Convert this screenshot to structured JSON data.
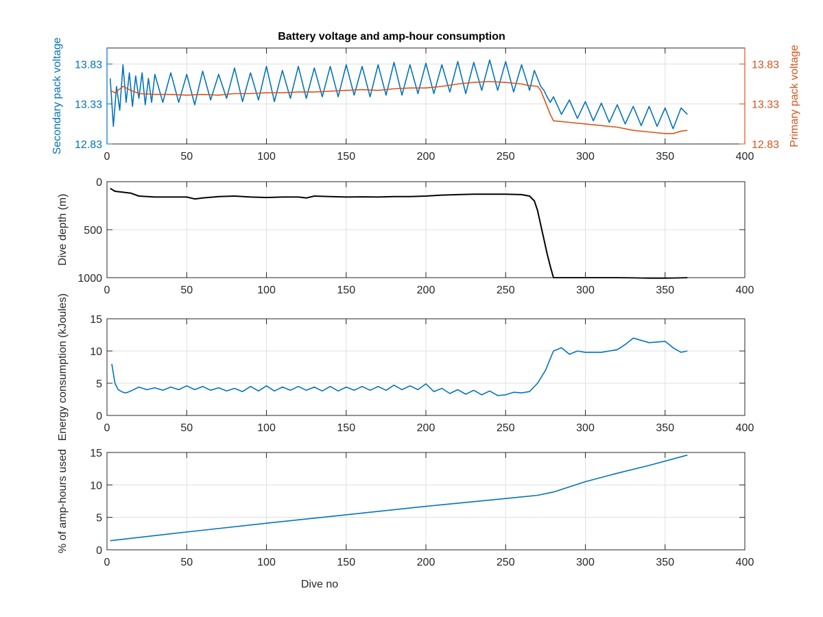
{
  "colors": {
    "blue": "#0072BD",
    "orange": "#D95319",
    "black": "#000000",
    "axis": "#262626",
    "grid": "#DFDFDF"
  },
  "chart_data": [
    {
      "type": "line",
      "title": "Battery voltage and amp-hour consumption",
      "xlabel": "",
      "ylabel": "Secondary pack voltage",
      "ylabel_right": "Primary pack voltage",
      "xlim": [
        0,
        400
      ],
      "ylim": [
        12.83,
        14.03
      ],
      "ylim_right": [
        12.83,
        14.03
      ],
      "xticks": [
        0,
        50,
        100,
        150,
        200,
        250,
        300,
        350,
        400
      ],
      "yticks": [
        12.83,
        13.33,
        13.83
      ],
      "yticks_right": [
        12.83,
        13.33,
        13.83
      ],
      "grid": true,
      "series": [
        {
          "axis": "left",
          "color": "#0072BD",
          "x": [
            2,
            4,
            6,
            8,
            10,
            12,
            14,
            16,
            18,
            20,
            22,
            24,
            26,
            28,
            30,
            35,
            40,
            45,
            50,
            55,
            60,
            65,
            70,
            75,
            80,
            85,
            90,
            95,
            100,
            105,
            110,
            115,
            120,
            125,
            130,
            135,
            140,
            145,
            150,
            155,
            160,
            165,
            170,
            175,
            180,
            185,
            190,
            195,
            200,
            205,
            210,
            215,
            220,
            225,
            230,
            235,
            240,
            245,
            250,
            255,
            260,
            265,
            268,
            270,
            272,
            274,
            276,
            278,
            280,
            285,
            290,
            295,
            300,
            305,
            310,
            315,
            320,
            325,
            330,
            335,
            340,
            345,
            350,
            355,
            360,
            364
          ],
          "y": [
            13.65,
            13.05,
            13.55,
            13.25,
            13.82,
            13.35,
            13.72,
            13.3,
            13.68,
            13.4,
            13.72,
            13.32,
            13.65,
            13.35,
            13.7,
            13.35,
            13.72,
            13.35,
            13.7,
            13.32,
            13.74,
            13.38,
            13.7,
            13.4,
            13.78,
            13.36,
            13.72,
            13.38,
            13.8,
            13.36,
            13.75,
            13.4,
            13.8,
            13.4,
            13.78,
            13.42,
            13.8,
            13.42,
            13.82,
            13.44,
            13.8,
            13.42,
            13.82,
            13.44,
            13.85,
            13.44,
            13.82,
            13.46,
            13.84,
            13.46,
            13.82,
            13.48,
            13.86,
            13.46,
            13.85,
            13.5,
            13.88,
            13.5,
            13.86,
            13.48,
            13.82,
            13.5,
            13.75,
            13.65,
            13.55,
            13.5,
            13.42,
            13.35,
            13.42,
            13.2,
            13.38,
            13.15,
            13.36,
            13.12,
            13.34,
            13.1,
            13.32,
            13.08,
            13.3,
            13.06,
            13.3,
            13.05,
            13.28,
            13.02,
            13.28,
            13.2
          ]
        },
        {
          "axis": "right",
          "color": "#D95319",
          "x": [
            2,
            5,
            10,
            15,
            20,
            30,
            40,
            50,
            60,
            70,
            80,
            90,
            100,
            110,
            120,
            130,
            140,
            150,
            160,
            170,
            180,
            190,
            200,
            210,
            220,
            230,
            240,
            250,
            260,
            265,
            270,
            272,
            275,
            278,
            280,
            290,
            300,
            310,
            320,
            330,
            340,
            350,
            355,
            360,
            364
          ],
          "y": [
            13.5,
            13.47,
            13.55,
            13.5,
            13.46,
            13.45,
            13.45,
            13.44,
            13.45,
            13.44,
            13.46,
            13.46,
            13.47,
            13.47,
            13.48,
            13.48,
            13.49,
            13.5,
            13.51,
            13.5,
            13.52,
            13.53,
            13.53,
            13.55,
            13.58,
            13.6,
            13.61,
            13.6,
            13.58,
            13.56,
            13.55,
            13.5,
            13.35,
            13.2,
            13.12,
            13.1,
            13.08,
            13.06,
            13.04,
            13.0,
            12.98,
            12.96,
            12.96,
            12.99,
            13.0
          ]
        }
      ]
    },
    {
      "type": "line",
      "xlabel": "",
      "ylabel": "Dive depth (m)",
      "xlim": [
        0,
        400
      ],
      "ylim": [
        1000,
        0
      ],
      "y_reversed": true,
      "xticks": [
        0,
        50,
        100,
        150,
        200,
        250,
        300,
        350,
        400
      ],
      "yticks": [
        0,
        500,
        1000
      ],
      "grid": true,
      "series": [
        {
          "color": "#000000",
          "x": [
            2,
            5,
            10,
            15,
            20,
            30,
            40,
            50,
            55,
            60,
            70,
            80,
            90,
            100,
            110,
            120,
            125,
            130,
            140,
            150,
            160,
            170,
            180,
            190,
            200,
            210,
            220,
            230,
            240,
            250,
            260,
            265,
            268,
            270,
            272,
            274,
            276,
            278,
            280,
            290,
            300,
            310,
            320,
            330,
            340,
            350,
            360,
            364
          ],
          "y": [
            70,
            100,
            110,
            120,
            150,
            160,
            160,
            160,
            180,
            170,
            155,
            150,
            160,
            165,
            160,
            160,
            170,
            150,
            155,
            160,
            158,
            160,
            155,
            155,
            150,
            140,
            135,
            130,
            130,
            130,
            135,
            150,
            200,
            300,
            450,
            600,
            750,
            880,
            1000,
            1000,
            1000,
            1000,
            1000,
            1002,
            1005,
            1005,
            1002,
            1000
          ]
        }
      ]
    },
    {
      "type": "line",
      "xlabel": "",
      "ylabel": "Energy consumption (kJoules)",
      "xlim": [
        0,
        400
      ],
      "ylim": [
        0,
        15
      ],
      "xticks": [
        0,
        50,
        100,
        150,
        200,
        250,
        300,
        350,
        400
      ],
      "yticks": [
        0,
        5,
        10,
        15
      ],
      "grid": true,
      "series": [
        {
          "color": "#0072BD",
          "x": [
            3,
            5,
            7,
            10,
            12,
            15,
            20,
            25,
            30,
            35,
            40,
            45,
            50,
            55,
            60,
            65,
            70,
            75,
            80,
            85,
            90,
            95,
            100,
            105,
            110,
            115,
            120,
            125,
            130,
            135,
            140,
            145,
            150,
            155,
            160,
            165,
            170,
            175,
            180,
            185,
            190,
            195,
            200,
            205,
            210,
            215,
            220,
            225,
            230,
            235,
            240,
            245,
            250,
            255,
            260,
            265,
            270,
            275,
            280,
            285,
            290,
            295,
            300,
            310,
            320,
            325,
            330,
            340,
            350,
            355,
            360,
            364
          ],
          "y": [
            8.0,
            5.0,
            4.0,
            3.6,
            3.5,
            3.8,
            4.4,
            4.0,
            4.3,
            3.9,
            4.4,
            4.0,
            4.6,
            4.0,
            4.5,
            3.9,
            4.3,
            3.8,
            4.2,
            3.7,
            4.5,
            3.8,
            4.6,
            3.8,
            4.4,
            3.9,
            4.5,
            3.9,
            4.4,
            3.8,
            4.5,
            3.8,
            4.4,
            3.9,
            4.5,
            3.9,
            4.5,
            3.9,
            4.7,
            4.0,
            4.6,
            4.0,
            4.9,
            3.7,
            4.2,
            3.4,
            4.0,
            3.3,
            3.9,
            3.2,
            3.8,
            3.1,
            3.2,
            3.6,
            3.5,
            3.7,
            5.0,
            7.0,
            10.0,
            10.5,
            9.5,
            10.0,
            9.8,
            9.8,
            10.2,
            11.0,
            12.0,
            11.3,
            11.5,
            10.5,
            9.8,
            10.0
          ]
        }
      ]
    },
    {
      "type": "line",
      "xlabel": "Dive no",
      "ylabel": "% of amp-hours used",
      "xlim": [
        0,
        400
      ],
      "ylim": [
        0,
        15
      ],
      "xticks": [
        0,
        50,
        100,
        150,
        200,
        250,
        300,
        350,
        400
      ],
      "yticks": [
        0,
        5,
        10,
        15
      ],
      "grid": true,
      "series": [
        {
          "color": "#0072BD",
          "x": [
            2,
            50,
            100,
            150,
            200,
            250,
            270,
            280,
            300,
            320,
            340,
            364
          ],
          "y": [
            1.4,
            2.75,
            4.1,
            5.4,
            6.7,
            7.9,
            8.4,
            8.9,
            10.5,
            11.8,
            13.0,
            14.6
          ]
        }
      ]
    }
  ]
}
